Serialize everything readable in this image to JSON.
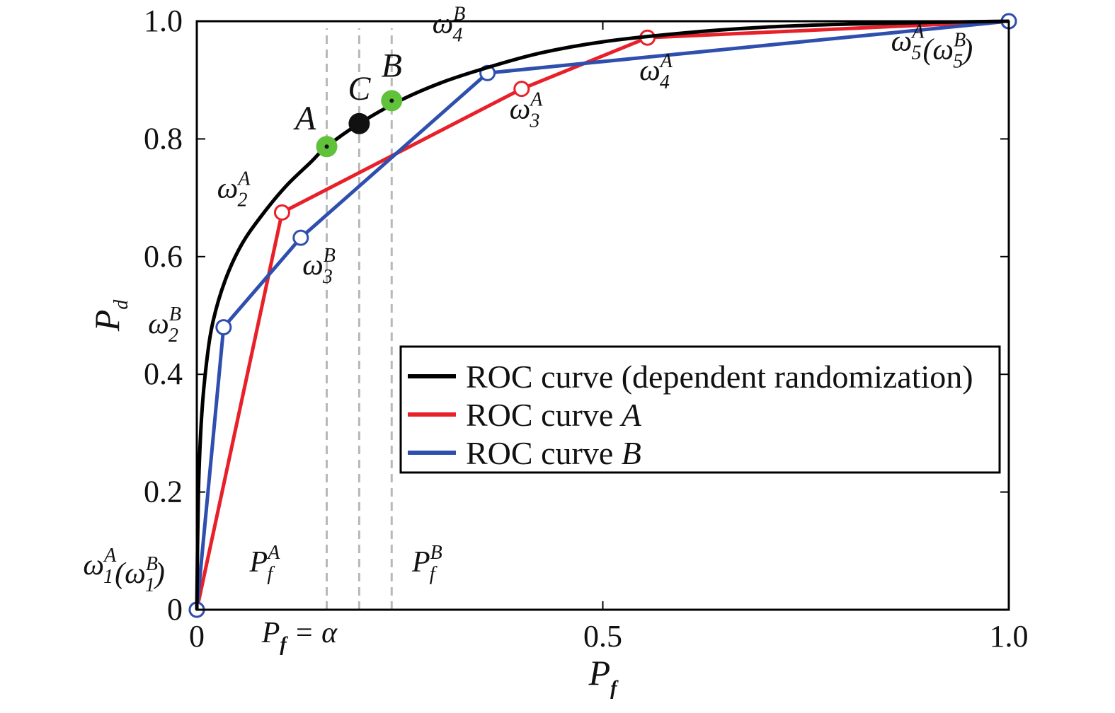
{
  "chart_data": {
    "type": "line",
    "xlabel": "P_f",
    "ylabel": "P_d",
    "xlim": [
      0,
      1
    ],
    "ylim": [
      0,
      1
    ],
    "x_ticks": [
      {
        "value": 0,
        "label": "0"
      },
      {
        "value": 0.5,
        "label": "0.5"
      },
      {
        "value": 1,
        "label": "1.0"
      }
    ],
    "y_ticks": [
      {
        "value": 0,
        "label": "0"
      },
      {
        "value": 0.2,
        "label": "0.2"
      },
      {
        "value": 0.4,
        "label": "0.4"
      },
      {
        "value": 0.6,
        "label": "0.6"
      },
      {
        "value": 0.8,
        "label": "0.8"
      },
      {
        "value": 1,
        "label": "1.0"
      }
    ],
    "grid": false,
    "legend_position": "lower-right",
    "series": [
      {
        "name": "ROC curve (dependent randomization)",
        "color": "#000000",
        "smooth": true,
        "points": [
          [
            0,
            0
          ],
          [
            0.002,
            0.2
          ],
          [
            0.006,
            0.33
          ],
          [
            0.012,
            0.42
          ],
          [
            0.02,
            0.49
          ],
          [
            0.035,
            0.56
          ],
          [
            0.055,
            0.62
          ],
          [
            0.08,
            0.67
          ],
          [
            0.11,
            0.72
          ],
          [
            0.14,
            0.76
          ],
          [
            0.16,
            0.787
          ],
          [
            0.2,
            0.826
          ],
          [
            0.25,
            0.865
          ],
          [
            0.3,
            0.895
          ],
          [
            0.35,
            0.918
          ],
          [
            0.42,
            0.945
          ],
          [
            0.5,
            0.965
          ],
          [
            0.6,
            0.98
          ],
          [
            0.7,
            0.99
          ],
          [
            0.8,
            0.995
          ],
          [
            0.9,
            0.998
          ],
          [
            1,
            1
          ]
        ]
      },
      {
        "name": "ROC curve A",
        "color": "#e8202a",
        "points": [
          [
            0,
            0
          ],
          [
            0.105,
            0.675
          ],
          [
            0.4,
            0.885
          ],
          [
            0.555,
            0.972
          ],
          [
            1,
            1
          ]
        ]
      },
      {
        "name": "ROC curve B",
        "color": "#2e4fae",
        "points": [
          [
            0,
            0
          ],
          [
            0.033,
            0.48
          ],
          [
            0.128,
            0.632
          ],
          [
            0.358,
            0.912
          ],
          [
            1,
            1
          ]
        ]
      }
    ],
    "markers": [
      {
        "name": "A",
        "x": 0.16,
        "y": 0.787,
        "fill": "#5fc23a"
      },
      {
        "name": "C",
        "x": 0.2,
        "y": 0.826,
        "fill": "#111111"
      },
      {
        "name": "B",
        "x": 0.24,
        "y": 0.865,
        "fill": "#5fc23a"
      }
    ],
    "reference_lines": [
      {
        "axis": "x",
        "value": 0.16
      },
      {
        "axis": "x",
        "value": 0.2
      },
      {
        "axis": "x",
        "value": 0.24
      }
    ],
    "annotations": [
      {
        "id": "w1",
        "x": -0.14,
        "y": 0.06,
        "base": "ω",
        "sub": "1",
        "sup": "A",
        "suffix_open": "(ω",
        "suffix_sub": "1",
        "suffix_sup": "B",
        "suffix_close": ")"
      },
      {
        "id": "w2A",
        "x": 0.025,
        "y": 0.7,
        "base": "ω",
        "sub": "2",
        "sup": "A"
      },
      {
        "id": "w2B",
        "x": -0.06,
        "y": 0.47,
        "base": "ω",
        "sub": "2",
        "sup": "B"
      },
      {
        "id": "w3B",
        "x": 0.13,
        "y": 0.57,
        "base": "ω",
        "sub": "3",
        "sup": "B"
      },
      {
        "id": "w3A",
        "x": 0.385,
        "y": 0.835,
        "base": "ω",
        "sub": "3",
        "sup": "A"
      },
      {
        "id": "w4B",
        "x": 0.29,
        "y": 0.98,
        "base": "ω",
        "sub": "4",
        "sup": "B"
      },
      {
        "id": "w4A",
        "x": 0.545,
        "y": 0.9,
        "base": "ω",
        "sub": "4",
        "sup": "A"
      },
      {
        "id": "w5",
        "x": 0.855,
        "y": 0.95,
        "base": "ω",
        "sub": "5",
        "sup": "A",
        "suffix_open": "(ω",
        "suffix_sub": "5",
        "suffix_sup": "B",
        "suffix_close": ")"
      },
      {
        "id": "PfA",
        "x": 0.065,
        "y": 0.065,
        "base": "P",
        "sub": "f",
        "sup": "A"
      },
      {
        "id": "PfB",
        "x": 0.265,
        "y": 0.065,
        "base": "P",
        "sub": "f",
        "sup": "B"
      }
    ],
    "alpha_label": {
      "x": 0.08,
      "y": -0.055,
      "base": "P",
      "sub": "f",
      "rest": " = α"
    }
  }
}
